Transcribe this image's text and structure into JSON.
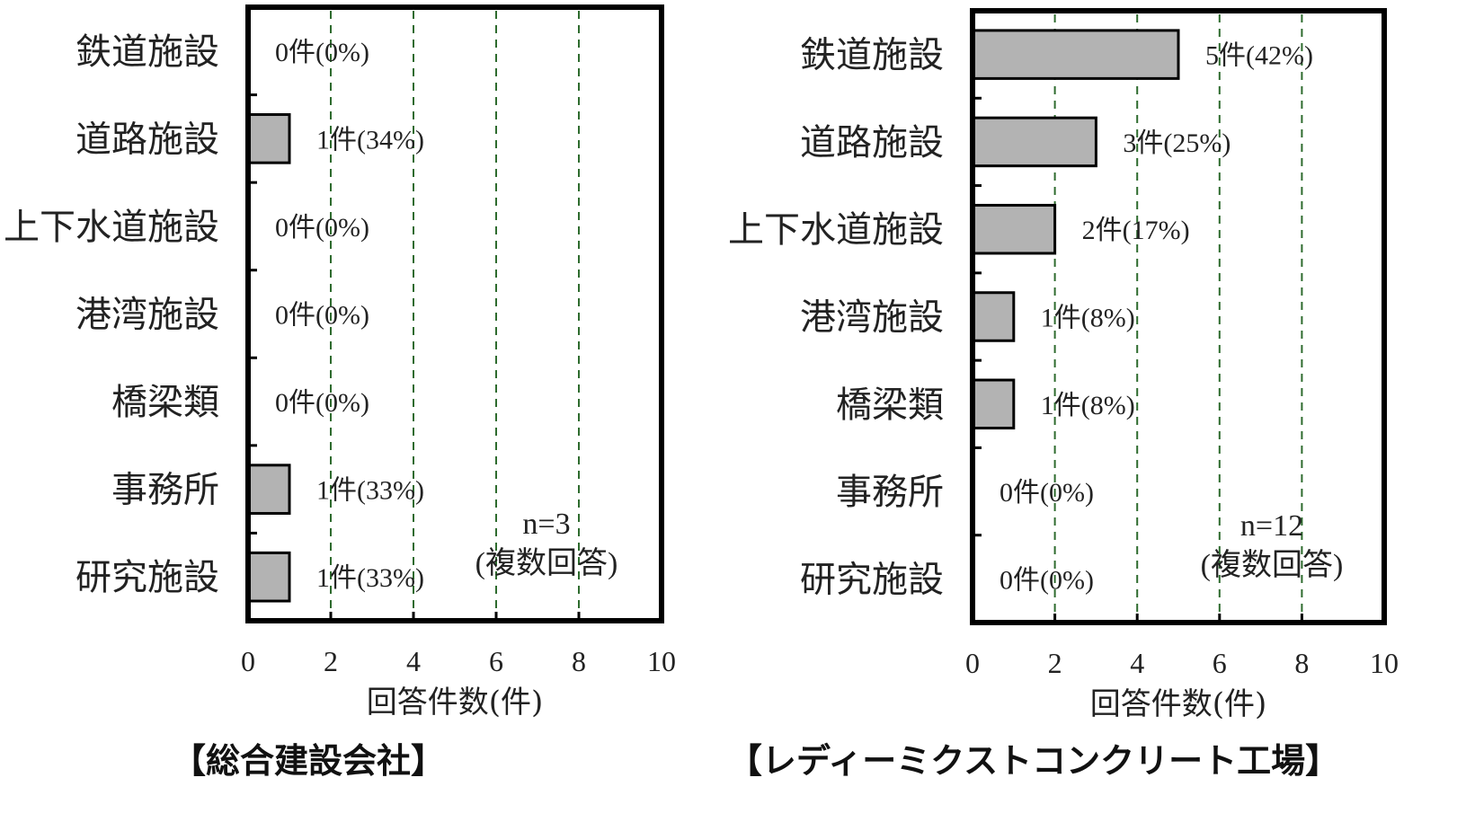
{
  "chart_data": [
    {
      "type": "bar",
      "orientation": "horizontal",
      "caption": "【総合建設会社】",
      "categories": [
        "鉄道施設",
        "道路施設",
        "上下水道施設",
        "港湾施設",
        "橋梁類",
        "事務所",
        "研究施設"
      ],
      "values": [
        0,
        1,
        0,
        0,
        0,
        1,
        1
      ],
      "value_labels": [
        "0件(0%)",
        "1件(34%)",
        "0件(0%)",
        "0件(0%)",
        "0件(0%)",
        "1件(33%)",
        "1件(33%)"
      ],
      "xlabel": "回答件数(件)",
      "xlim": [
        0,
        10
      ],
      "xticks": [
        "0",
        "2",
        "4",
        "6",
        "8",
        "10"
      ],
      "grid": "vertical dashed",
      "note": [
        "n=3",
        "(複数回答)"
      ],
      "bar_color": "#b3b3b3",
      "grid_color": "#2e6b2e"
    },
    {
      "type": "bar",
      "orientation": "horizontal",
      "caption": "【レディーミクストコンクリート工場】",
      "categories": [
        "鉄道施設",
        "道路施設",
        "上下水道施設",
        "港湾施設",
        "橋梁類",
        "事務所",
        "研究施設"
      ],
      "values": [
        5,
        3,
        2,
        1,
        1,
        0,
        0
      ],
      "value_labels": [
        "5件(42%)",
        "3件(25%)",
        "2件(17%)",
        "1件(8%)",
        "1件(8%)",
        "0件(0%)",
        "0件(0%)"
      ],
      "xlabel": "回答件数(件)",
      "xlim": [
        0,
        10
      ],
      "xticks": [
        "0",
        "2",
        "4",
        "6",
        "8",
        "10"
      ],
      "grid": "vertical dashed",
      "note": [
        "n=12",
        "(複数回答)"
      ],
      "bar_color": "#b3b3b3",
      "grid_color": "#2e6b2e"
    }
  ]
}
